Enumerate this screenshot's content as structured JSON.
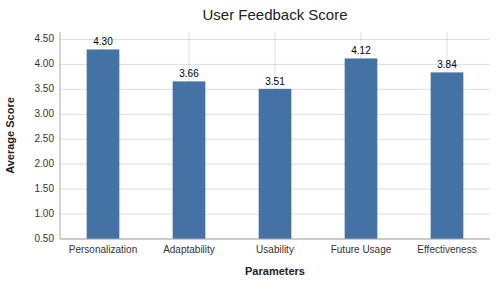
{
  "chart_data": {
    "type": "bar",
    "title": "User Feedback Score",
    "x_label": "Parameters",
    "y_label": "Average Score",
    "categories": [
      "Personalization",
      "Adaptability",
      "Usability",
      "Future Usage",
      "Effectiveness"
    ],
    "values": [
      4.3,
      3.66,
      3.51,
      4.12,
      3.84
    ],
    "value_labels": [
      "4.30",
      "3.66",
      "3.51",
      "4.12",
      "3.84"
    ],
    "data_labels": true,
    "color": "#4472A4",
    "ylim": [
      0.5,
      4.65
    ],
    "yticks": [
      {
        "value": 0.5,
        "label": "0.50"
      },
      {
        "value": 1.0,
        "label": "1.00"
      },
      {
        "value": 1.5,
        "label": "1.50"
      },
      {
        "value": 2.0,
        "label": "2.00"
      },
      {
        "value": 2.5,
        "label": "2.50"
      },
      {
        "value": 3.0,
        "label": "3.00"
      },
      {
        "value": 3.5,
        "label": "3.50"
      },
      {
        "value": 4.0,
        "label": "4.00"
      },
      {
        "value": 4.5,
        "label": "4.50"
      }
    ],
    "grid": true
  }
}
